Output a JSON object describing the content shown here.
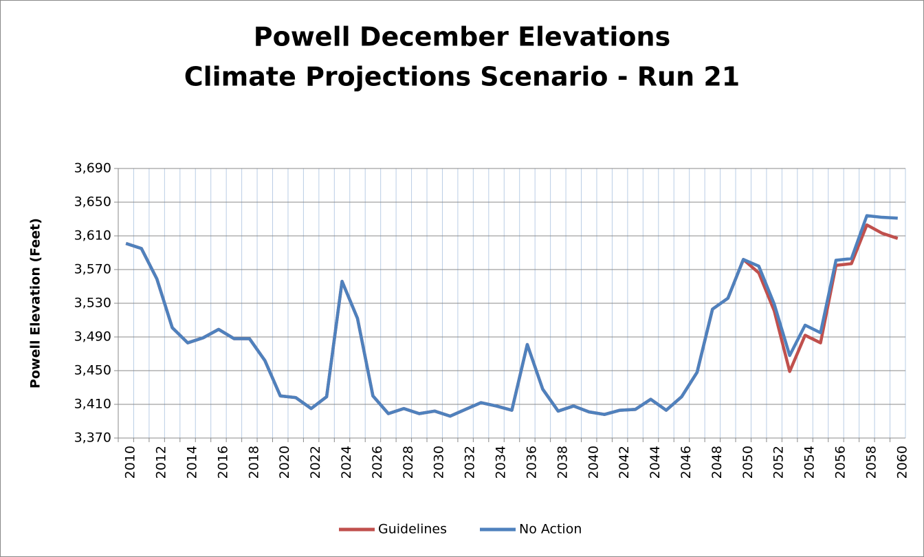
{
  "chart_data": {
    "type": "line",
    "title": "Powell December Elevations",
    "subtitle": "Climate Projections Scenario - Run 21",
    "y_label": "Powell Elevation (Feet)",
    "categories": [
      "2010",
      null,
      "2012",
      null,
      "2014",
      null,
      "2016",
      null,
      "2018",
      null,
      "2020",
      null,
      "2022",
      null,
      "2024",
      null,
      "2026",
      null,
      "2028",
      null,
      "2030",
      null,
      "2032",
      null,
      "2034",
      null,
      "2036",
      null,
      "2038",
      null,
      "2040",
      null,
      "2042",
      null,
      "2044",
      null,
      "2046",
      null,
      "2048",
      null,
      "2050",
      null,
      "2052",
      null,
      "2054",
      null,
      "2056",
      null,
      "2058",
      null,
      "2060"
    ],
    "series": [
      {
        "name": "Guidelines",
        "color": "#c0504d",
        "values": [
          3601,
          3595,
          3559,
          3501,
          3483,
          3489,
          3499,
          3488,
          3488,
          3462,
          3420,
          3418,
          3405,
          3419,
          3556,
          3512,
          3420,
          3399,
          3405,
          3399,
          3402,
          3396,
          3404,
          3412,
          3408,
          3403,
          3481,
          3428,
          3402,
          3408,
          3401,
          3398,
          3403,
          3404,
          3416,
          3403,
          3419,
          3448,
          3523,
          3536,
          3582,
          3566,
          3521,
          3449,
          3492,
          3483,
          3575,
          3577,
          3623,
          3613,
          3607
        ]
      },
      {
        "name": "No Action",
        "color": "#4f81bd",
        "values": [
          3601,
          3595,
          3559,
          3501,
          3483,
          3489,
          3499,
          3488,
          3488,
          3462,
          3420,
          3418,
          3405,
          3419,
          3556,
          3512,
          3420,
          3399,
          3405,
          3399,
          3402,
          3396,
          3404,
          3412,
          3408,
          3403,
          3481,
          3428,
          3402,
          3408,
          3401,
          3398,
          3403,
          3404,
          3416,
          3403,
          3419,
          3448,
          3523,
          3536,
          3582,
          3574,
          3529,
          3468,
          3504,
          3495,
          3581,
          3583,
          3634,
          3632,
          3631
        ]
      }
    ],
    "ylim": [
      3370,
      3690
    ],
    "yticks": [
      {
        "value": 3370,
        "label": "3,370"
      },
      {
        "value": 3410,
        "label": "3,410"
      },
      {
        "value": 3450,
        "label": "3,450"
      },
      {
        "value": 3490,
        "label": "3,490"
      },
      {
        "value": 3530,
        "label": "3,530"
      },
      {
        "value": 3570,
        "label": "3,570"
      },
      {
        "value": 3610,
        "label": "3,610"
      },
      {
        "value": 3650,
        "label": "3,650"
      },
      {
        "value": 3690,
        "label": "3,690"
      }
    ],
    "grid": true,
    "legend": "bottom"
  }
}
